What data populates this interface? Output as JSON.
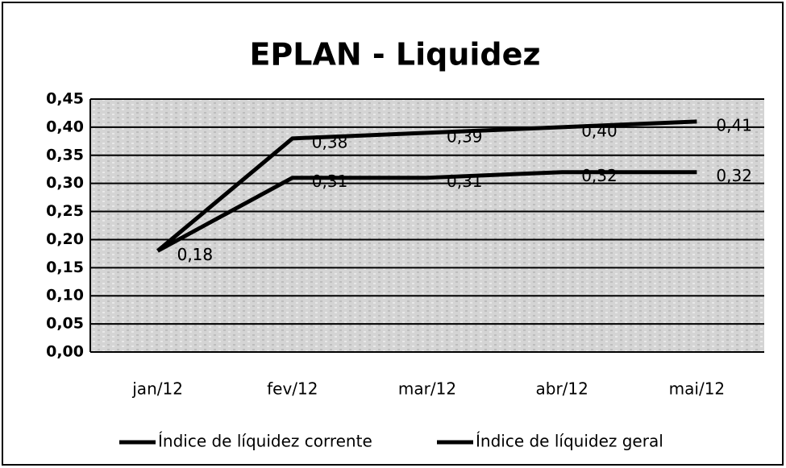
{
  "chart_data": {
    "type": "line",
    "title": "EPLAN - Liquidez",
    "categories": [
      "jan/12",
      "fev/12",
      "mar/12",
      "abr/12",
      "mai/12"
    ],
    "series": [
      {
        "name": "Índice de líquidez corrente",
        "color": "#000000",
        "values": [
          0.18,
          0.38,
          0.39,
          0.4,
          0.41
        ],
        "value_labels": [
          "0,18",
          "0,38",
          "0,39",
          "0,40",
          "0,41"
        ]
      },
      {
        "name": "Índice de líquidez geral",
        "color": "#000000",
        "values": [
          0.18,
          0.31,
          0.31,
          0.32,
          0.32
        ],
        "value_labels": [
          "0,18",
          "0,31",
          "0,31",
          "0,32",
          "0,32"
        ]
      }
    ],
    "ylim": [
      0,
      0.45
    ],
    "yticks": [
      {
        "value": 0,
        "label": "0,00"
      },
      {
        "value": 0.05,
        "label": "0,05"
      },
      {
        "value": 0.1,
        "label": "0,10"
      },
      {
        "value": 0.15,
        "label": "0,15"
      },
      {
        "value": 0.2,
        "label": "0,20"
      },
      {
        "value": 0.25,
        "label": "0,25"
      },
      {
        "value": 0.3,
        "label": "0,30"
      },
      {
        "value": 0.35,
        "label": "0,35"
      },
      {
        "value": 0.4,
        "label": "0,40"
      },
      {
        "value": 0.45,
        "label": "0,45"
      }
    ],
    "grid": true,
    "legend": "bottom"
  }
}
